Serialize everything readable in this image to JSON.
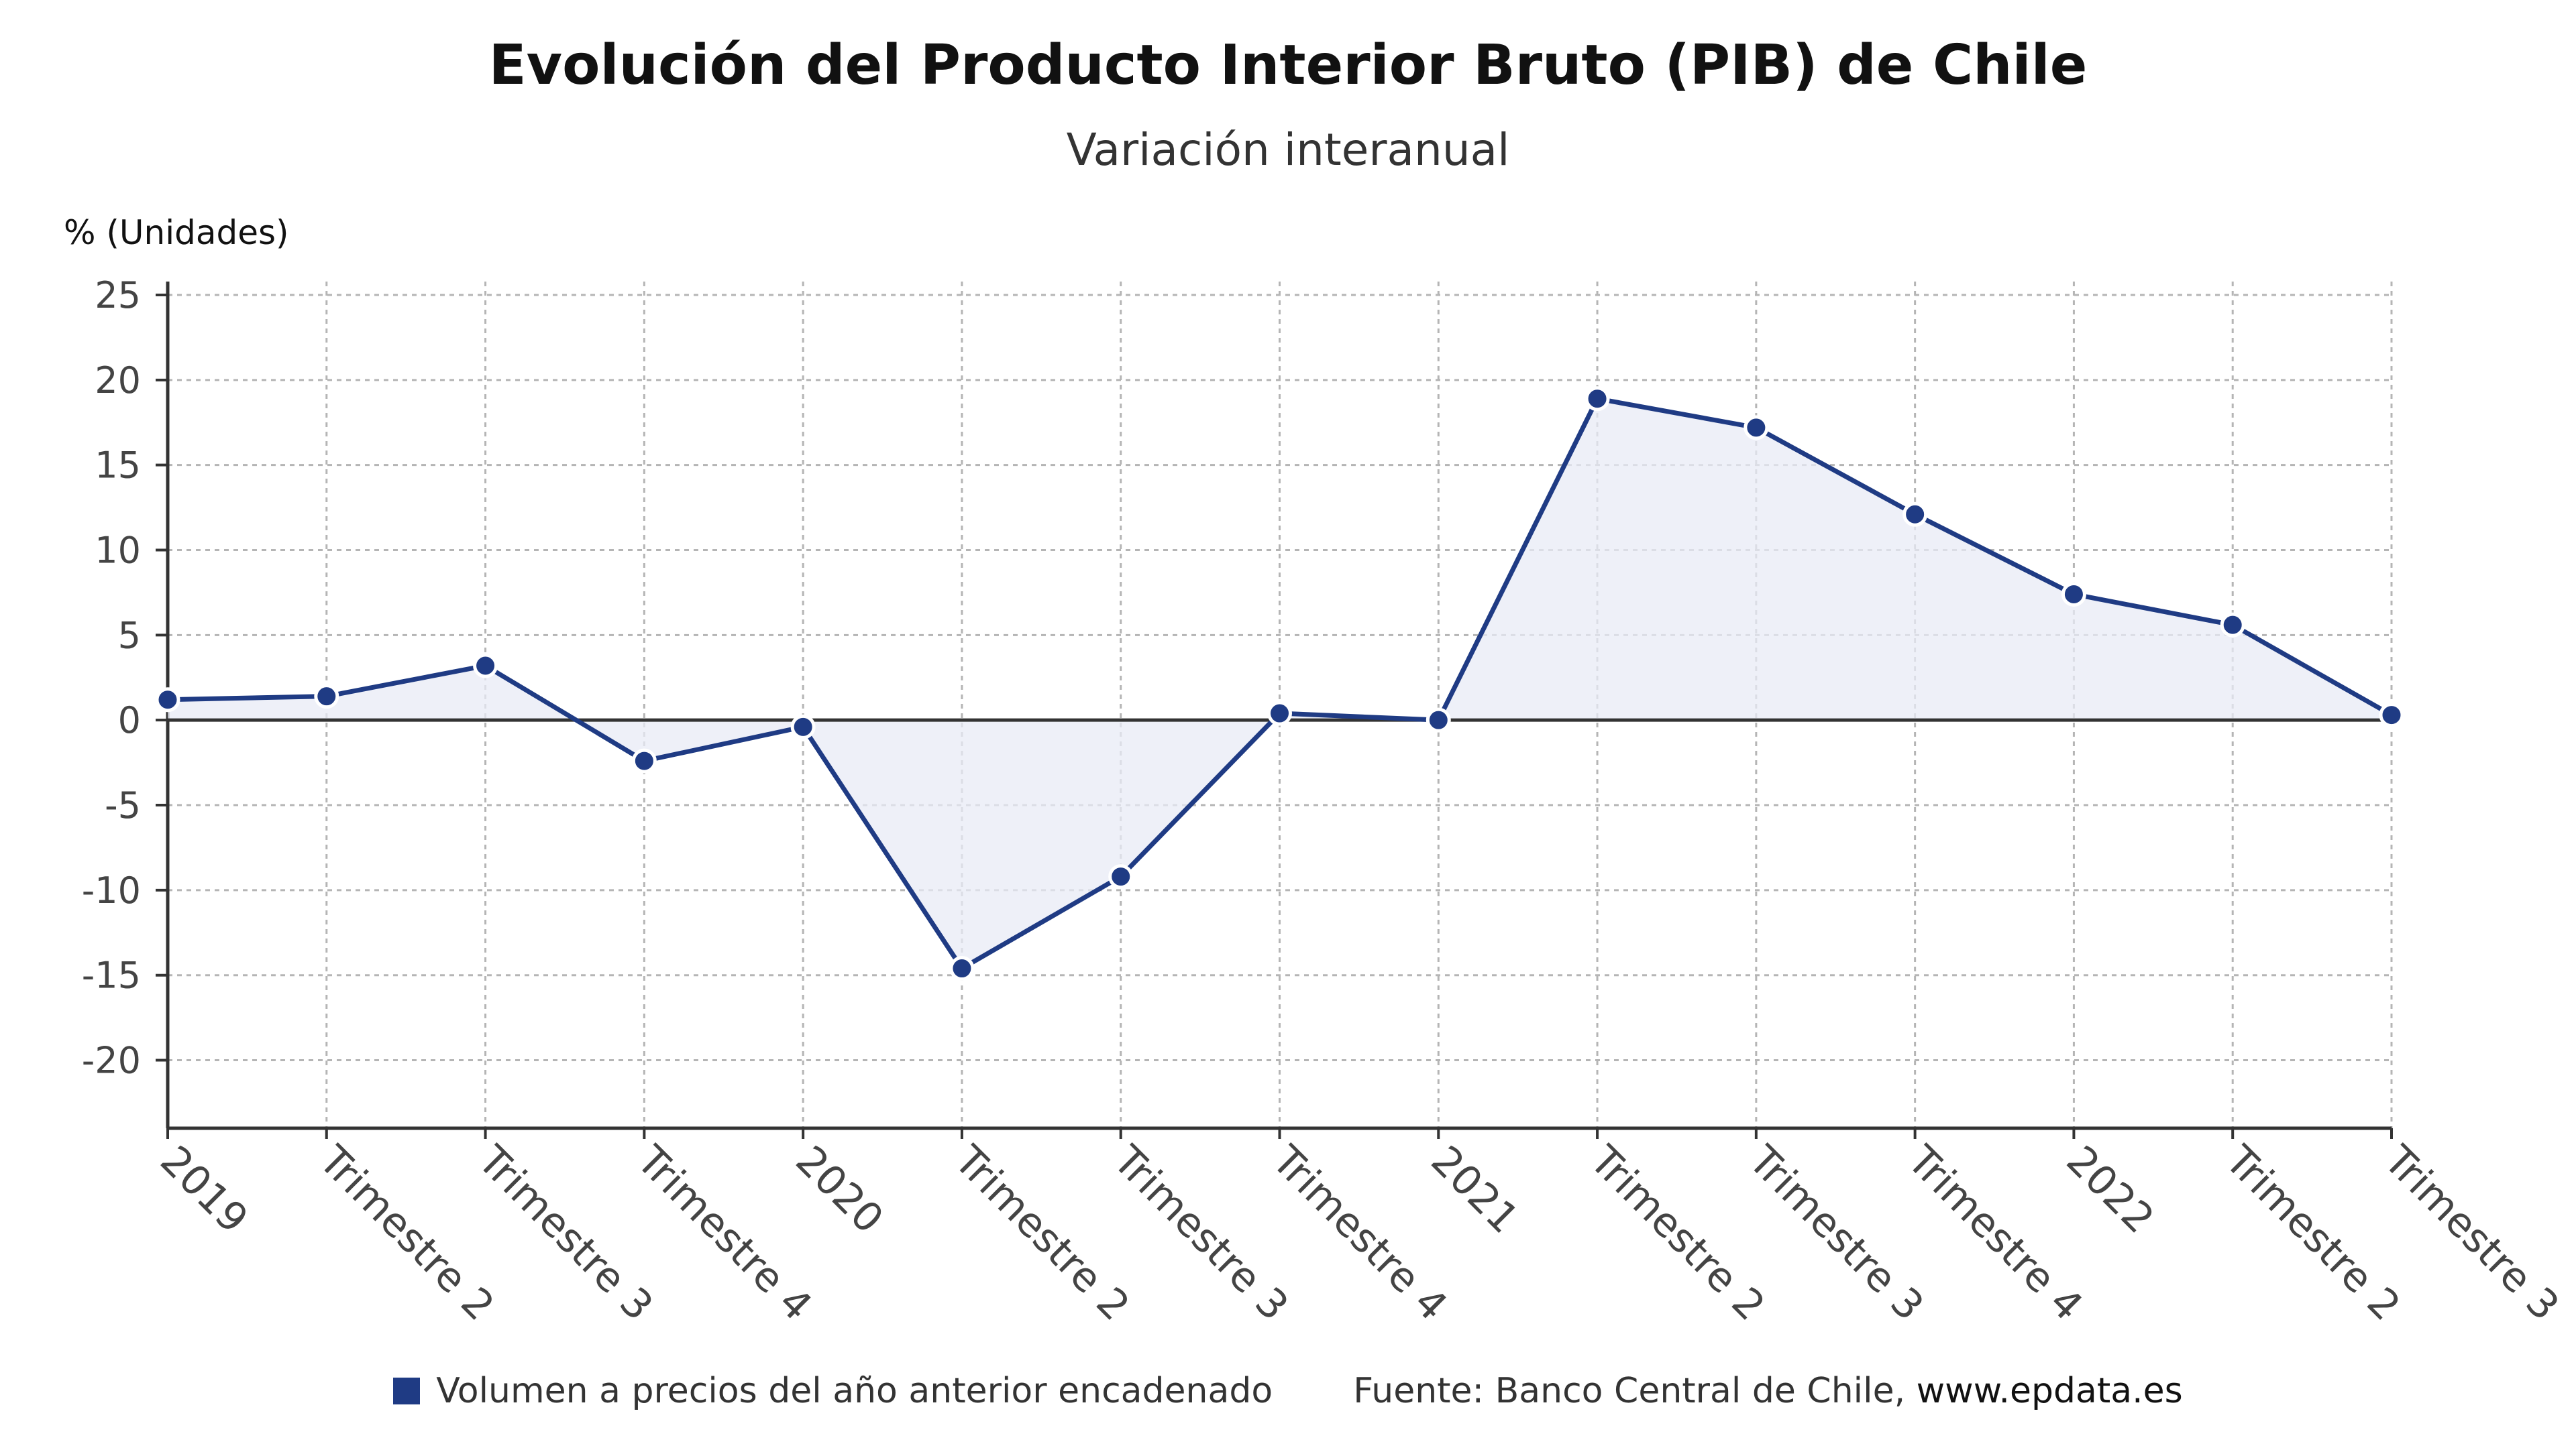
{
  "header": {
    "title": "Evolución del Producto Interior Bruto (PIB) de Chile",
    "subtitle": "Variación interanual",
    "unit": "% (Unidades)"
  },
  "legend": {
    "label": "Volumen a precios del año anterior encadenado",
    "color": "#1f3b84"
  },
  "source": {
    "prefix": "Fuente: Banco Central de Chile, ",
    "link": "www.epdata.es"
  },
  "colors": {
    "line": "#1f3b84",
    "fill": "#e8ebf5",
    "grid": "#b5b5b5",
    "axis": "#333333"
  },
  "chart_data": {
    "type": "area",
    "title": "Evolución del Producto Interior Bruto (PIB) de Chile",
    "subtitle": "Variación interanual",
    "ylabel": "% (Unidades)",
    "xlabel": "",
    "ylim": [
      -24,
      25
    ],
    "yticks": [
      25,
      20,
      15,
      10,
      5,
      0,
      -5,
      -10,
      -15,
      -20
    ],
    "grid": true,
    "legend_position": "bottom",
    "categories": [
      "2019",
      "Trimestre 2",
      "Trimestre 3",
      "Trimestre 4",
      "2020",
      "Trimestre 2",
      "Trimestre 3",
      "Trimestre 4",
      "2021",
      "Trimestre 2",
      "Trimestre 3",
      "Trimestre 4",
      "2022",
      "Trimestre 2",
      "Trimestre 3"
    ],
    "series": [
      {
        "name": "Volumen a precios del año anterior encadenado",
        "values": [
          1.2,
          1.4,
          3.2,
          -2.4,
          -0.4,
          -14.6,
          -9.2,
          0.4,
          0.0,
          18.9,
          17.2,
          12.1,
          7.4,
          5.6,
          0.3
        ]
      }
    ]
  }
}
